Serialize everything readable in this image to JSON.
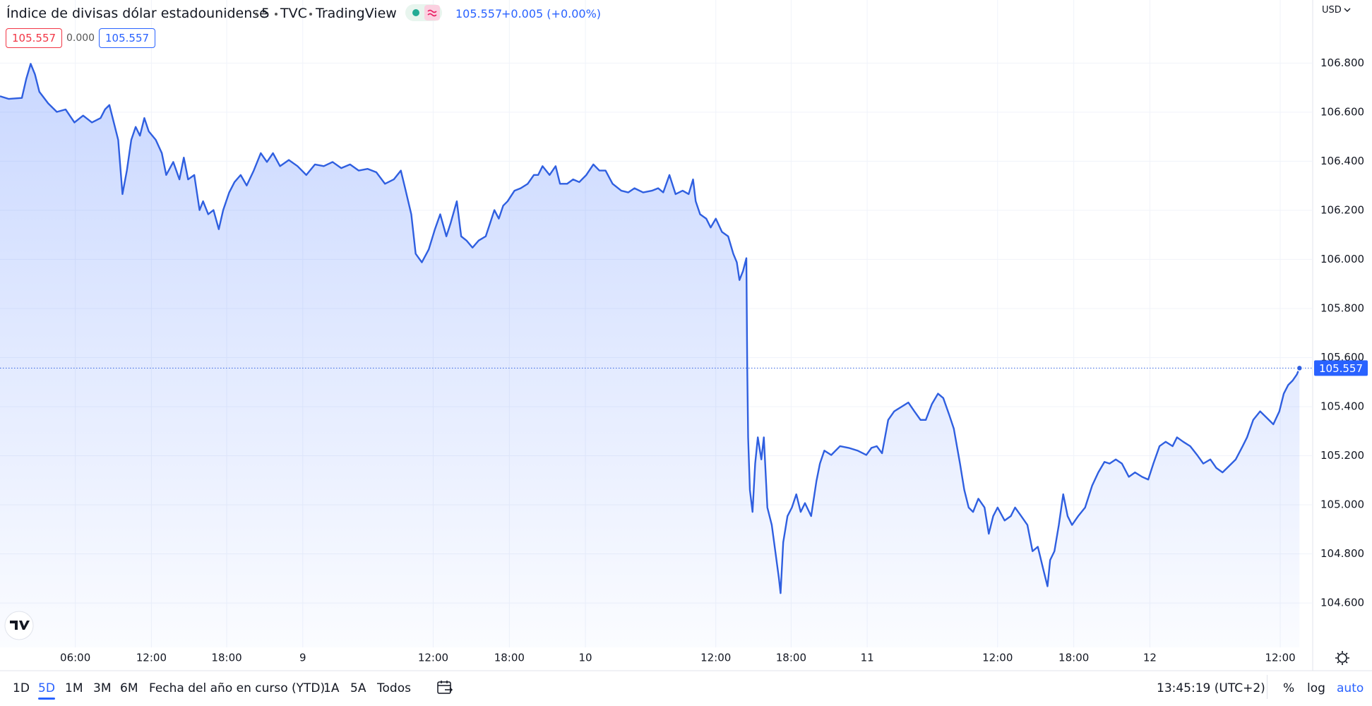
{
  "header": {
    "title": "Índice de divisas dólar estadounidense",
    "interval": "5",
    "exchange": "TVC",
    "source": "TradingView",
    "price": "105.557",
    "change": "+0.005 (+0.00%)",
    "box_open": "105.557",
    "box_diff": "0.000",
    "box_close": "105.557",
    "currency": "USD"
  },
  "toolbar": {
    "ranges": [
      "1D",
      "5D",
      "1M",
      "3M",
      "6M",
      "Fecha del año en curso (YTD)",
      "1A",
      "5A",
      "Todos"
    ],
    "active": "5D",
    "clock": "13:45:19 (UTC+2)",
    "percent": "%",
    "log": "log",
    "auto": "auto"
  },
  "chart_data": {
    "type": "line",
    "color": "#2f5fe0",
    "grid": true,
    "x": [
      0,
      0.7,
      1.74,
      2.09,
      2.44,
      2.78,
      3.13,
      3.83,
      4.52,
      5.22,
      5.92,
      6.61,
      7.31,
      8.0,
      8.35,
      8.7,
      9.05,
      9.4,
      9.74,
      10.09,
      10.44,
      10.79,
      11.13,
      11.48,
      11.83,
      12.39,
      12.87,
      13.22,
      13.78,
      14.27,
      14.62,
      14.96,
      15.45,
      15.87,
      16.15,
      16.56,
      16.98,
      17.4,
      17.75,
      18.23,
      18.65,
      19.14,
      19.62,
      20.18,
      20.74,
      21.23,
      21.71,
      22.27,
      22.97,
      23.66,
      24.36,
      25.05,
      25.75,
      26.45,
      27.14,
      27.84,
      28.53,
      29.23,
      29.93,
      30.62,
      31.32,
      31.88,
      32.22,
      32.71,
      33.06,
      33.55,
      34.1,
      34.59,
      35.01,
      35.5,
      35.84,
      36.33,
      36.68,
      37.1,
      37.58,
      38.07,
      38.63,
      38.98,
      39.32,
      39.67,
      40.02,
      40.37,
      40.92,
      41.41,
      41.97,
      42.46,
      42.8,
      43.15,
      43.71,
      44.19,
      44.54,
      45.1,
      45.58,
      46.07,
      46.63,
      47.19,
      47.67,
      48.16,
      48.72,
      49.41,
      49.97,
      50.46,
      51.15,
      51.85,
      52.34,
      52.75,
      53.24,
      53.73,
      54.29,
      54.77,
      55.12,
      55.33,
      55.68,
      56.17,
      56.52,
      56.93,
      57.42,
      57.91,
      58.32,
      58.6,
      58.81,
      59.09,
      59.36,
      59.43,
      59.5,
      59.64,
      59.85,
      60.06,
      60.27,
      60.55,
      60.75,
      61.03,
      61.38,
      61.66,
      61.94,
      62.08,
      62.29,
      62.63,
      62.98,
      63.33,
      63.68,
      64.02,
      64.51,
      64.93,
      65.21,
      65.56,
      66.11,
      66.81,
      67.5,
      68.2,
      68.9,
      69.31,
      69.73,
      70.15,
      70.64,
      71.12,
      71.68,
      72.24,
      72.72,
      73.21,
      73.63,
      74.11,
      74.6,
      75.02,
      75.51,
      75.86,
      76.35,
      76.69,
      77.04,
      77.39,
      77.81,
      78.3,
      78.64,
      78.99,
      79.34,
      79.9,
      80.39,
      80.73,
      81.22,
      81.71,
      82.12,
      82.54,
      82.96,
      83.31,
      83.52,
      83.86,
      84.21,
      84.56,
      84.91,
      85.26,
      85.75,
      86.3,
      86.86,
      87.35,
      87.84,
      88.25,
      88.74,
      89.23,
      89.78,
      90.27,
      90.83,
      91.32,
      91.73,
      92.22,
      92.71,
      93.26,
      93.61,
      94.1,
      94.66,
      95.21,
      95.7,
      96.26,
      96.74,
      97.23,
      97.79,
      98.28,
      98.83,
      99.18,
      99.67,
      100.22,
      100.78,
      101.27,
      101.75,
      102.1,
      102.45,
      102.8,
      103.14,
      103.35
    ],
    "values": [
      106.665,
      106.654,
      106.658,
      106.736,
      106.797,
      106.754,
      106.683,
      106.636,
      106.601,
      106.611,
      106.558,
      106.586,
      106.558,
      106.576,
      106.611,
      106.629,
      106.558,
      106.487,
      106.266,
      106.362,
      106.487,
      106.54,
      106.504,
      106.576,
      106.522,
      106.487,
      106.433,
      106.344,
      106.397,
      106.326,
      106.415,
      106.326,
      106.344,
      106.201,
      106.237,
      106.184,
      106.201,
      106.123,
      106.201,
      106.273,
      106.315,
      106.344,
      106.301,
      106.362,
      106.433,
      106.397,
      106.433,
      106.38,
      106.405,
      106.38,
      106.344,
      106.387,
      106.38,
      106.397,
      106.372,
      106.387,
      106.362,
      106.369,
      106.355,
      106.308,
      106.326,
      106.362,
      106.29,
      106.184,
      106.023,
      105.988,
      106.041,
      106.123,
      106.184,
      106.094,
      106.148,
      106.237,
      106.094,
      106.077,
      106.048,
      106.077,
      106.094,
      106.148,
      106.201,
      106.166,
      106.219,
      106.237,
      106.28,
      106.29,
      106.308,
      106.344,
      106.344,
      106.38,
      106.344,
      106.38,
      106.308,
      106.308,
      106.326,
      106.315,
      106.344,
      106.387,
      106.362,
      106.362,
      106.308,
      106.28,
      106.273,
      106.29,
      106.273,
      106.28,
      106.29,
      106.273,
      106.344,
      106.266,
      106.28,
      106.266,
      106.326,
      106.237,
      106.184,
      106.166,
      106.13,
      106.166,
      106.112,
      106.094,
      106.023,
      105.988,
      105.916,
      105.952,
      106.005,
      105.56,
      105.275,
      105.061,
      104.971,
      105.168,
      105.275,
      105.185,
      105.275,
      104.989,
      104.918,
      104.811,
      104.704,
      104.64,
      104.847,
      104.954,
      104.989,
      105.043,
      104.971,
      105.007,
      104.954,
      105.096,
      105.168,
      105.221,
      105.203,
      105.239,
      105.232,
      105.221,
      105.203,
      105.232,
      105.239,
      105.21,
      105.346,
      105.381,
      105.399,
      105.417,
      105.381,
      105.346,
      105.346,
      105.41,
      105.453,
      105.435,
      105.364,
      105.31,
      105.168,
      105.061,
      104.989,
      104.971,
      105.025,
      104.989,
      104.882,
      104.954,
      104.989,
      104.936,
      104.954,
      104.989,
      104.954,
      104.918,
      104.811,
      104.829,
      104.74,
      104.668,
      104.775,
      104.811,
      104.918,
      105.043,
      104.954,
      104.918,
      104.954,
      104.989,
      105.078,
      105.132,
      105.175,
      105.168,
      105.185,
      105.168,
      105.114,
      105.132,
      105.114,
      105.103,
      105.168,
      105.239,
      105.257,
      105.239,
      105.275,
      105.257,
      105.239,
      105.203,
      105.168,
      105.185,
      105.15,
      105.132,
      105.16,
      105.185,
      105.239,
      105.275,
      105.346,
      105.381,
      105.353,
      105.328,
      105.381,
      105.453,
      105.488,
      105.506,
      105.531,
      105.557
    ],
    "xlim": [
      0,
      104.4
    ],
    "xticks": [
      {
        "value": 5.99,
        "label": "06:00"
      },
      {
        "value": 12.04,
        "label": "12:00"
      },
      {
        "value": 18.03,
        "label": "18:00"
      },
      {
        "value": 24.08,
        "label": "9"
      },
      {
        "value": 34.45,
        "label": "12:00"
      },
      {
        "value": 40.51,
        "label": "18:00"
      },
      {
        "value": 46.56,
        "label": "10"
      },
      {
        "value": 56.93,
        "label": "12:00"
      },
      {
        "value": 62.92,
        "label": "18:00"
      },
      {
        "value": 68.97,
        "label": "11"
      },
      {
        "value": 79.34,
        "label": "12:00"
      },
      {
        "value": 85.4,
        "label": "18:00"
      },
      {
        "value": 91.45,
        "label": "12"
      },
      {
        "value": 101.82,
        "label": "12:00"
      }
    ],
    "ylim": [
      104.419,
      107.057
    ],
    "yticks": [
      {
        "value": 104.6,
        "label": "104.600"
      },
      {
        "value": 104.8,
        "label": "104.800"
      },
      {
        "value": 105.0,
        "label": "105.000"
      },
      {
        "value": 105.2,
        "label": "105.200"
      },
      {
        "value": 105.4,
        "label": "105.400"
      },
      {
        "value": 105.6,
        "label": "105.600"
      },
      {
        "value": 105.8,
        "label": "105.800"
      },
      {
        "value": 106.0,
        "label": "106.000"
      },
      {
        "value": 106.2,
        "label": "106.200"
      },
      {
        "value": 106.4,
        "label": "106.400"
      },
      {
        "value": 106.6,
        "label": "106.600"
      },
      {
        "value": 106.8,
        "label": "106.800"
      }
    ]
  }
}
